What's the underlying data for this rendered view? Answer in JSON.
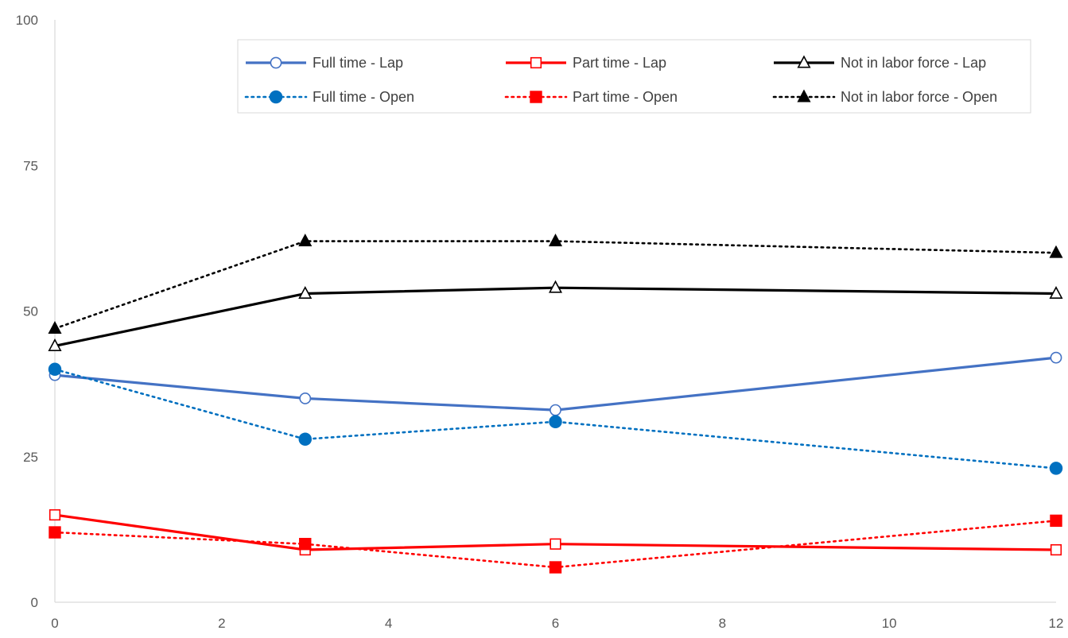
{
  "chart_data": {
    "type": "line",
    "title": "",
    "xlabel": "",
    "ylabel": "",
    "xlim": [
      0,
      12
    ],
    "ylim": [
      0,
      100
    ],
    "x_ticks": [
      0,
      2,
      4,
      6,
      8,
      10,
      12
    ],
    "y_ticks": [
      0,
      25,
      50,
      75,
      100
    ],
    "grid": false,
    "legend_position": "top-right",
    "x": [
      0,
      3,
      6,
      12
    ],
    "series": [
      {
        "name": "Full time - Lap",
        "values": [
          39,
          35,
          33,
          42
        ],
        "color": "#4472C4",
        "line_style": "solid",
        "marker": "circle-open"
      },
      {
        "name": "Part time - Lap",
        "values": [
          15,
          9,
          10,
          9
        ],
        "color": "#FF0000",
        "line_style": "solid",
        "marker": "square-open"
      },
      {
        "name": "Not in labor force - Lap",
        "values": [
          44,
          53,
          54,
          53
        ],
        "color": "#000000",
        "line_style": "solid",
        "marker": "triangle-open"
      },
      {
        "name": "Full time - Open",
        "values": [
          40,
          28,
          31,
          23
        ],
        "color": "#0070C0",
        "line_style": "dotted",
        "marker": "circle-filled"
      },
      {
        "name": "Part time - Open",
        "values": [
          12,
          10,
          6,
          14
        ],
        "color": "#FF0000",
        "line_style": "dotted",
        "marker": "square-filled"
      },
      {
        "name": "Not in labor force - Open",
        "values": [
          47,
          62,
          62,
          60
        ],
        "color": "#000000",
        "line_style": "dotted",
        "marker": "triangle-filled"
      }
    ]
  }
}
